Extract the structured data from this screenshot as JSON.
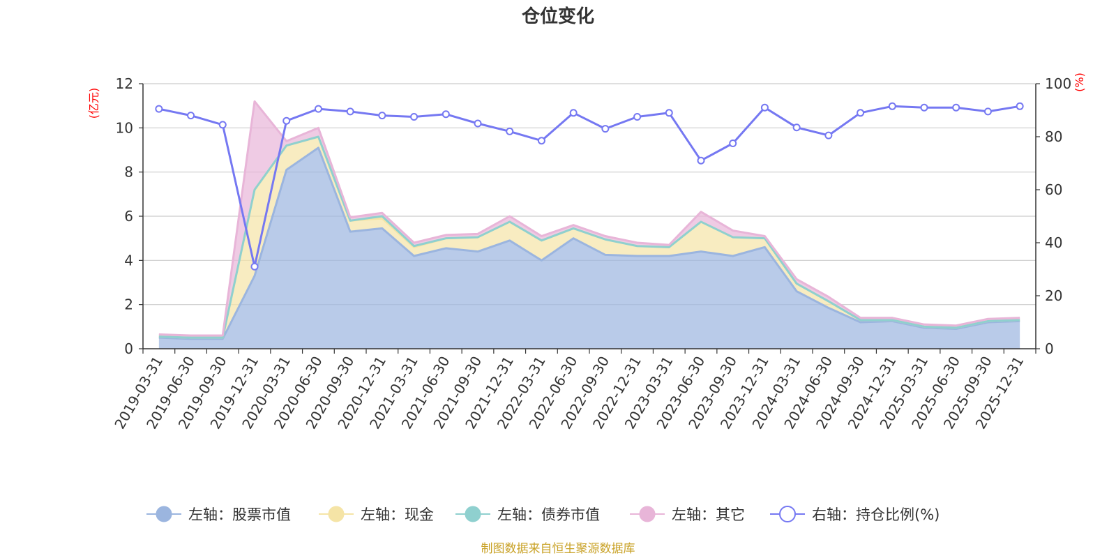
{
  "chart_data": {
    "type": "area",
    "title": "仓位变化",
    "source_note": "制图数据来自恒生聚源数据库",
    "left_axis": {
      "label": "(亿元)",
      "min": 0,
      "max": 12,
      "ticks": [
        "0",
        "2",
        "4",
        "6",
        "8",
        "10",
        "12"
      ]
    },
    "right_axis": {
      "label": "(%)",
      "min": 0,
      "max": 100,
      "ticks": [
        "0",
        "20",
        "40",
        "60",
        "80",
        "100"
      ]
    },
    "categories": [
      "2019-03-31",
      "2019-06-30",
      "2019-09-30",
      "2019-12-31",
      "2020-03-31",
      "2020-06-30",
      "2020-09-30",
      "2020-12-31",
      "2021-03-31",
      "2021-06-30",
      "2021-09-30",
      "2021-12-31",
      "2022-03-31",
      "2022-06-30",
      "2022-09-30",
      "2022-12-31",
      "2023-03-31",
      "2023-06-30",
      "2023-09-30",
      "2023-12-31",
      "2024-03-31",
      "2024-06-30",
      "2024-09-30",
      "2024-12-31",
      "2025-03-31",
      "2025-06-30",
      "2025-09-30",
      "2025-12-31"
    ],
    "series": [
      {
        "name": "左轴：股票市值",
        "axis": "left",
        "stack": true,
        "color": "#9bb5df",
        "values": [
          0.5,
          0.45,
          0.45,
          3.3,
          8.1,
          9.1,
          5.3,
          5.45,
          4.2,
          4.55,
          4.4,
          4.9,
          4.0,
          5.0,
          4.25,
          4.2,
          4.2,
          4.4,
          4.2,
          4.6,
          2.6,
          1.85,
          1.2,
          1.25,
          0.95,
          0.9,
          1.2,
          1.25
        ]
      },
      {
        "name": "左轴：现金",
        "axis": "left",
        "stack": true,
        "color": "#f5e4a6",
        "values": [
          0.05,
          0.05,
          0.05,
          3.9,
          1.1,
          0.5,
          0.5,
          0.45,
          0.4,
          0.45,
          0.65,
          0.85,
          0.9,
          0.45,
          0.7,
          0.45,
          0.4,
          1.35,
          0.85,
          0.4,
          0.35,
          0.3,
          0.1,
          0.05,
          0.05,
          0.05,
          0.05,
          0.05
        ]
      },
      {
        "name": "左轴：债券市值",
        "axis": "left",
        "stack": true,
        "color": "#8fd0cf",
        "values": [
          0,
          0,
          0,
          0,
          0,
          0,
          0,
          0.1,
          0.05,
          0,
          0,
          0,
          0,
          0,
          0,
          0,
          0,
          0,
          0,
          0,
          0,
          0,
          0,
          0,
          0,
          0,
          0,
          0
        ]
      },
      {
        "name": "左轴：其它",
        "axis": "left",
        "stack": true,
        "color": "#e8b5d8",
        "values": [
          0.1,
          0.1,
          0.1,
          4.0,
          0.2,
          0.4,
          0.15,
          0.15,
          0.15,
          0.15,
          0.15,
          0.25,
          0.2,
          0.15,
          0.15,
          0.15,
          0.1,
          0.45,
          0.3,
          0.1,
          0.2,
          0.2,
          0.1,
          0.1,
          0.1,
          0.1,
          0.1,
          0.1
        ]
      },
      {
        "name": "右轴：持仓比例(%)",
        "axis": "right",
        "stack": false,
        "color": "#7578f2",
        "values": [
          90.5,
          88,
          84.5,
          31,
          86,
          90.5,
          89.5,
          88,
          87.5,
          88.5,
          85,
          82,
          78.5,
          89,
          83,
          87.5,
          89,
          71,
          77.5,
          91,
          83.5,
          80.5,
          89,
          91.5,
          91,
          91,
          89.5,
          91.5
        ]
      }
    ]
  }
}
